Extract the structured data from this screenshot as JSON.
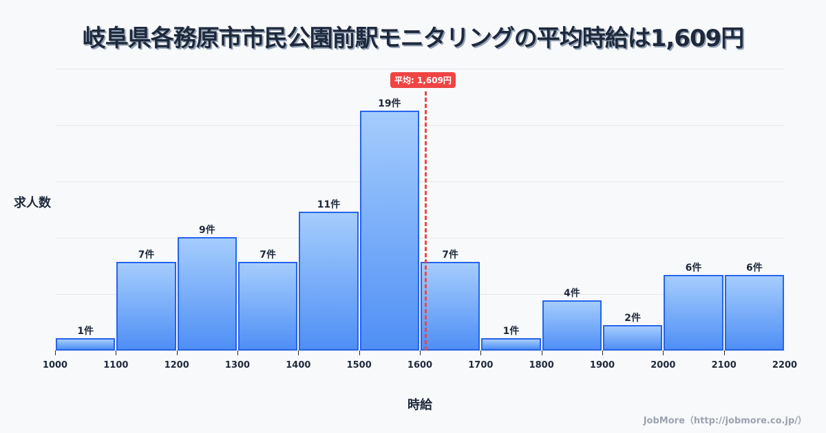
{
  "title": "岐阜県各務原市市民公園前駅モニタリングの平均時給は1,609円",
  "axis": {
    "ylabel": "求人数",
    "xlabel": "時給"
  },
  "mean": {
    "label": "平均: 1,609円",
    "value": 1609
  },
  "credit": "JobMore（http://jobmore.co.jp/）",
  "chart_data": {
    "type": "bar",
    "title": "岐阜県各務原市市民公園前駅モニタリングの平均時給は1,609円",
    "xlabel": "時給",
    "ylabel": "求人数",
    "bin_edges": [
      1000,
      1100,
      1200,
      1300,
      1400,
      1500,
      1600,
      1700,
      1800,
      1900,
      2000,
      2100,
      2200
    ],
    "categories": [
      "1000-1100",
      "1100-1200",
      "1200-1300",
      "1300-1400",
      "1400-1500",
      "1500-1600",
      "1600-1700",
      "1700-1800",
      "1800-1900",
      "1900-2000",
      "2000-2100",
      "2100-2200"
    ],
    "values": [
      1,
      7,
      9,
      7,
      11,
      19,
      7,
      1,
      4,
      2,
      6,
      6
    ],
    "data_labels": [
      "1件",
      "7件",
      "9件",
      "7件",
      "11件",
      "19件",
      "7件",
      "1件",
      "4件",
      "2件",
      "6件",
      "6件"
    ],
    "xlim": [
      1000,
      2200
    ],
    "grid": true,
    "annotations": [
      {
        "type": "vline",
        "x": 1609,
        "label": "平均: 1,609円",
        "color": "#ef4444"
      }
    ],
    "colors": {
      "bar_fill_top": "#a5cdfd",
      "bar_fill_bottom": "#4f8ff5",
      "bar_border": "#2563eb"
    }
  }
}
